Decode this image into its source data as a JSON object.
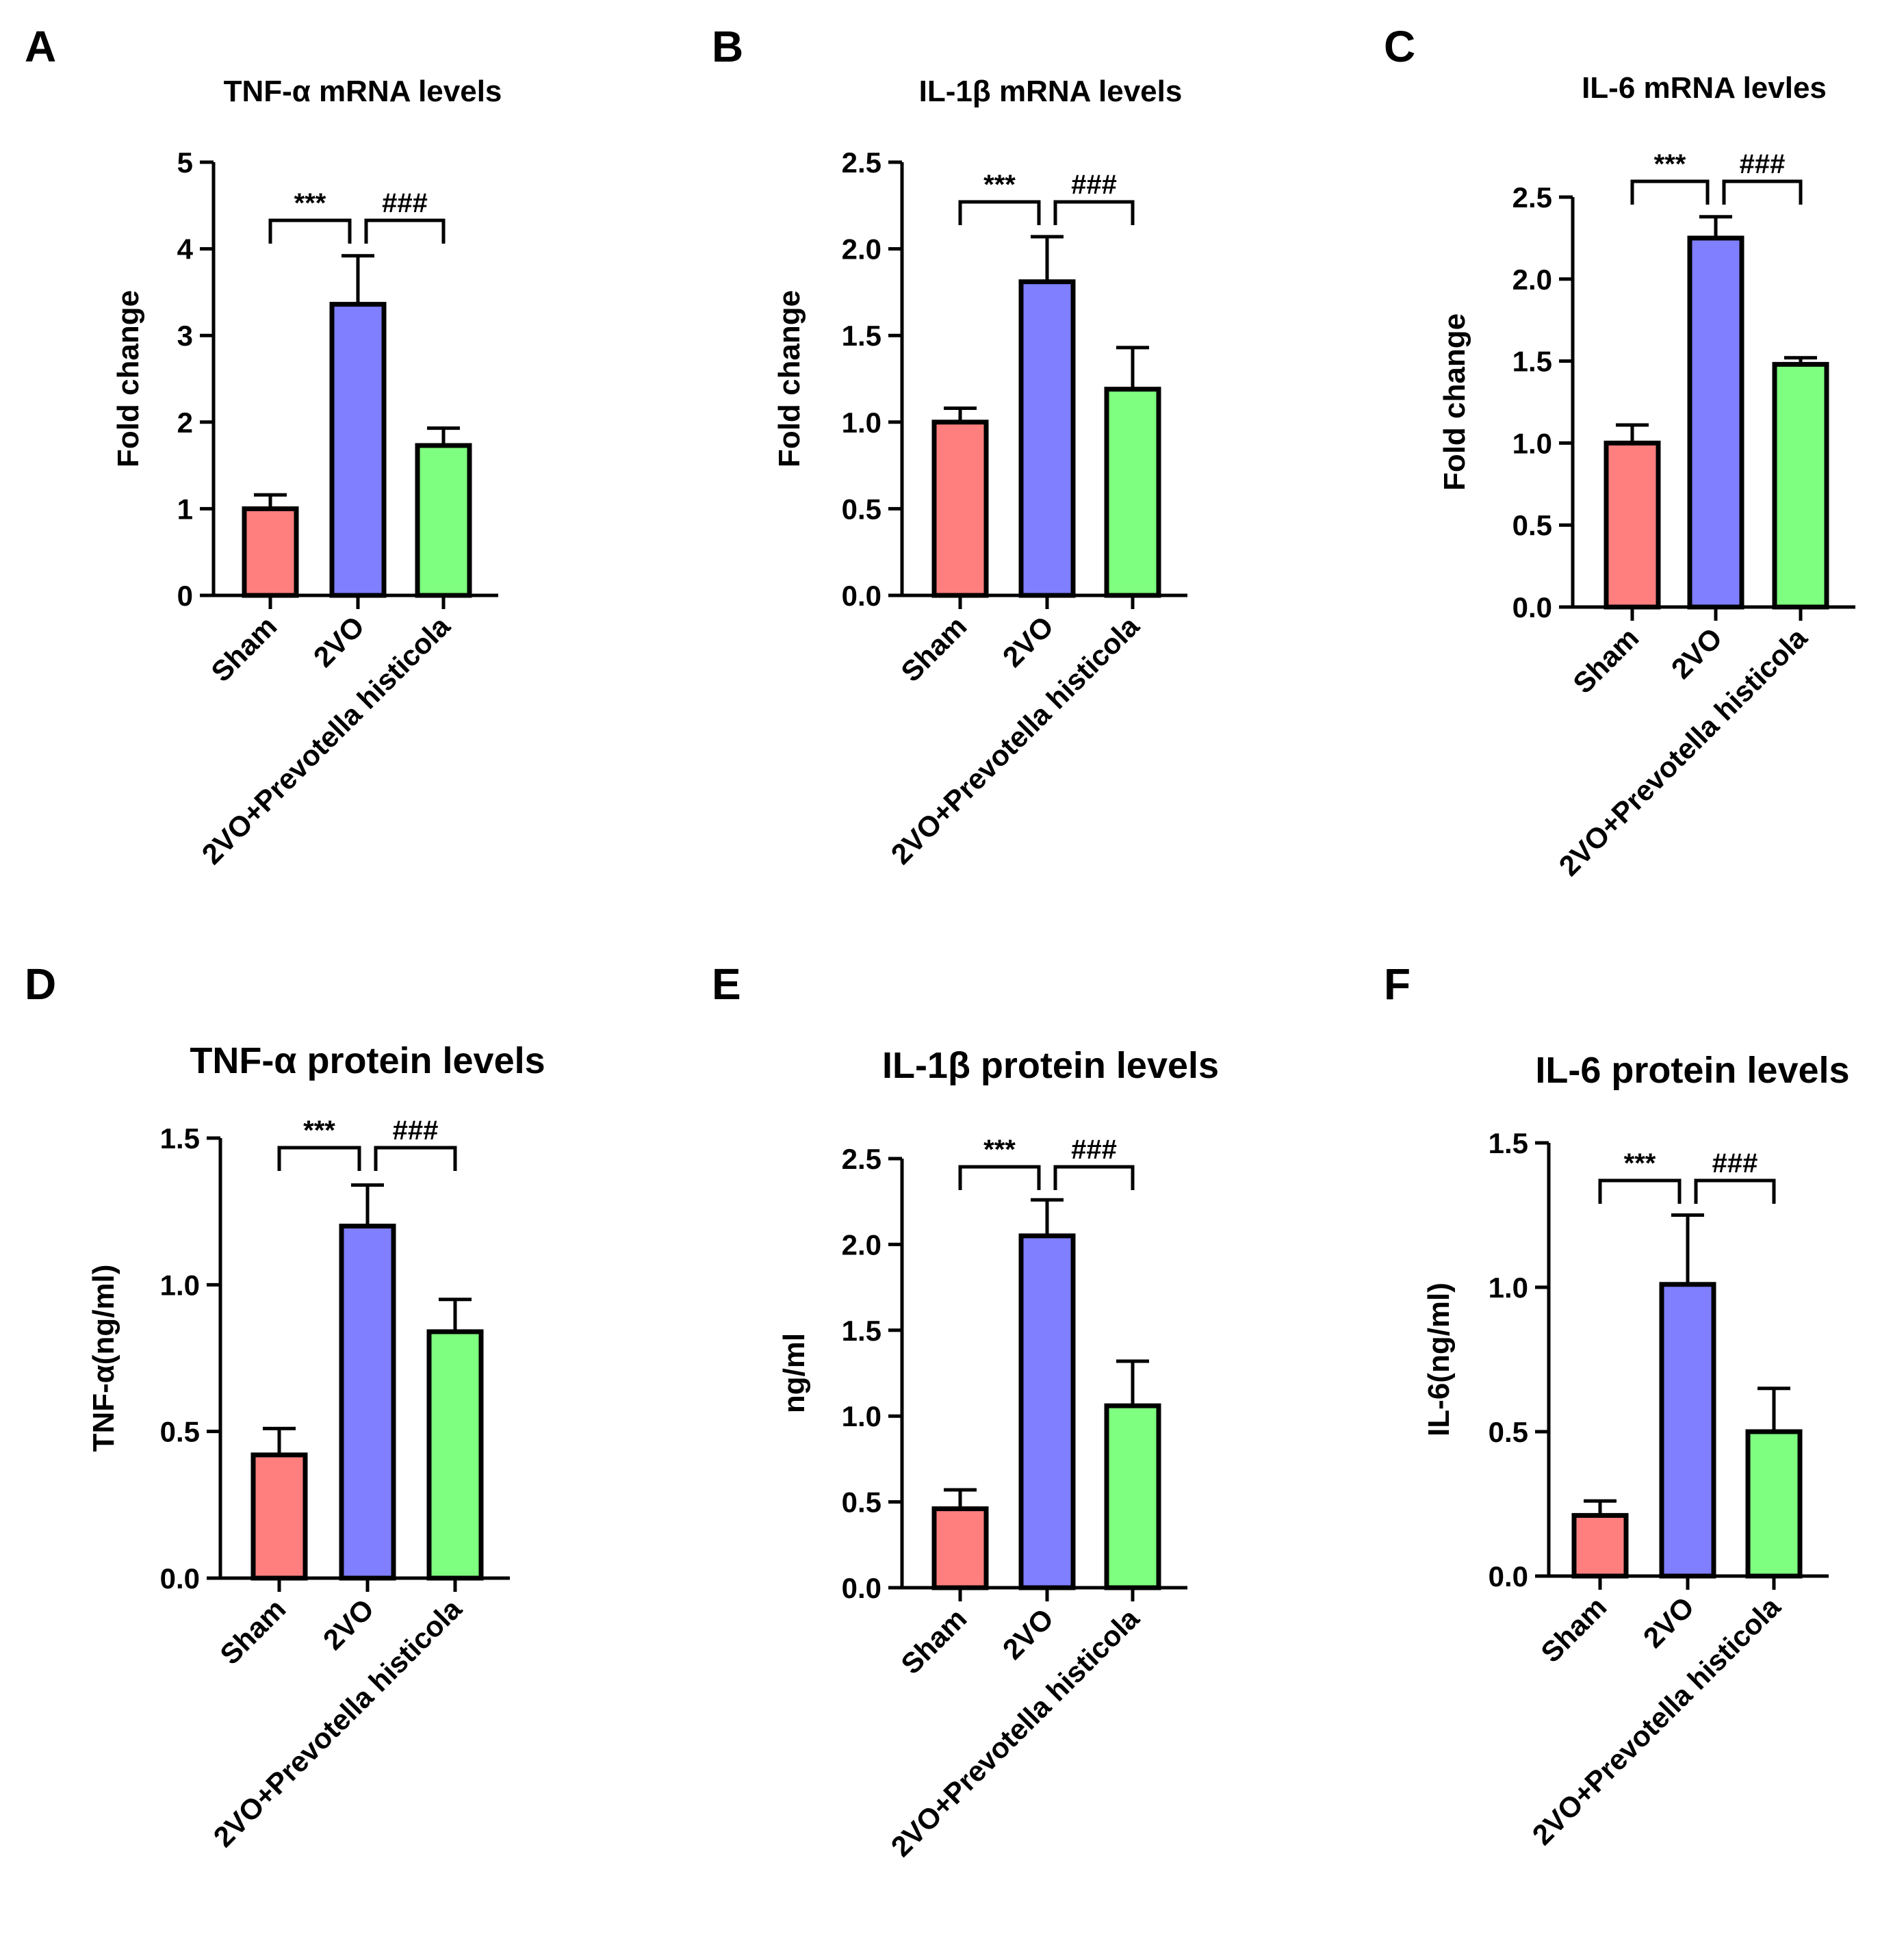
{
  "colors": {
    "Sham": "#ff7f7f",
    "2VO": "#7f7fff",
    "2VO+Prevotella histicola": "#7fff7f"
  },
  "chart_data": [
    {
      "panel": "A",
      "type": "bar",
      "title": "TNF-α mRNA levels",
      "ylabel": "Fold change",
      "ylim": [
        0,
        5
      ],
      "yticks": [
        "0",
        "1",
        "2",
        "3",
        "4",
        "5"
      ],
      "categories": [
        "Sham",
        "2VO",
        "2VO+Prevotella histicola"
      ],
      "values": [
        1.0,
        3.36,
        1.73
      ],
      "errors": [
        0.16,
        0.56,
        0.2
      ],
      "significance": [
        {
          "from": 0,
          "to": 1,
          "label": "***"
        },
        {
          "from": 1,
          "to": 2,
          "label": "###"
        }
      ]
    },
    {
      "panel": "B",
      "type": "bar",
      "title": "IL-1β mRNA levels",
      "ylabel": "Fold change",
      "ylim": [
        0,
        2.5
      ],
      "yticks": [
        "0.0",
        "0.5",
        "1.0",
        "1.5",
        "2.0",
        "2.5"
      ],
      "categories": [
        "Sham",
        "2VO",
        "2VO+Prevotella histicola"
      ],
      "values": [
        1.0,
        1.81,
        1.19
      ],
      "errors": [
        0.08,
        0.26,
        0.24
      ],
      "significance": [
        {
          "from": 0,
          "to": 1,
          "label": "***"
        },
        {
          "from": 1,
          "to": 2,
          "label": "###"
        }
      ]
    },
    {
      "panel": "C",
      "type": "bar",
      "title": "IL-6 mRNA levles",
      "ylabel": "Fold change",
      "ylim": [
        0,
        2.5
      ],
      "yticks": [
        "0.0",
        "0.5",
        "1.0",
        "1.5",
        "2.0",
        "2.5"
      ],
      "categories": [
        "Sham",
        "2VO",
        "2VO+Prevotella histicola"
      ],
      "values": [
        1.0,
        2.25,
        1.48
      ],
      "errors": [
        0.11,
        0.13,
        0.04
      ],
      "significance": [
        {
          "from": 0,
          "to": 1,
          "label": "***"
        },
        {
          "from": 1,
          "to": 2,
          "label": "###"
        }
      ]
    },
    {
      "panel": "D",
      "type": "bar",
      "title": "TNF-α protein levels",
      "ylabel": "TNF-α(ng/ml)",
      "ylim": [
        0,
        1.5
      ],
      "yticks": [
        "0.0",
        "0.5",
        "1.0",
        "1.5"
      ],
      "categories": [
        "Sham",
        "2VO",
        "2VO+Prevotella histicola"
      ],
      "values": [
        0.42,
        1.2,
        0.84
      ],
      "errors": [
        0.09,
        0.14,
        0.11
      ],
      "significance": [
        {
          "from": 0,
          "to": 1,
          "label": "***"
        },
        {
          "from": 1,
          "to": 2,
          "label": "###"
        }
      ]
    },
    {
      "panel": "E",
      "type": "bar",
      "title": "IL-1β protein levels",
      "ylabel": "ng/ml",
      "ylim": [
        0,
        2.5
      ],
      "yticks": [
        "0.0",
        "0.5",
        "1.0",
        "1.5",
        "2.0",
        "2.5"
      ],
      "categories": [
        "Sham",
        "2VO",
        "2VO+Prevotella histicola"
      ],
      "values": [
        0.46,
        2.05,
        1.06
      ],
      "errors": [
        0.11,
        0.21,
        0.26
      ],
      "significance": [
        {
          "from": 0,
          "to": 1,
          "label": "***"
        },
        {
          "from": 1,
          "to": 2,
          "label": "###"
        }
      ]
    },
    {
      "panel": "F",
      "type": "bar",
      "title": "IL-6 protein levels",
      "ylabel": "IL-6(ng/ml)",
      "ylim": [
        0,
        1.5
      ],
      "yticks": [
        "0.0",
        "0.5",
        "1.0",
        "1.5"
      ],
      "categories": [
        "Sham",
        "2VO",
        "2VO+Prevotella histicola"
      ],
      "values": [
        0.21,
        1.01,
        0.5
      ],
      "errors": [
        0.05,
        0.24,
        0.15
      ],
      "significance": [
        {
          "from": 0,
          "to": 1,
          "label": "***"
        },
        {
          "from": 1,
          "to": 2,
          "label": "###"
        }
      ]
    }
  ]
}
